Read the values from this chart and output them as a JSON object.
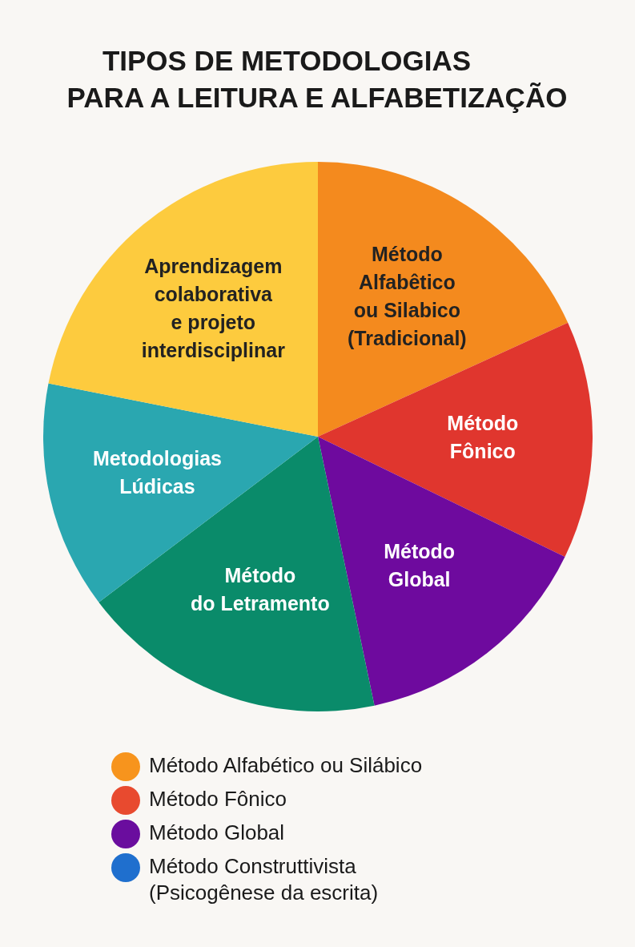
{
  "chart_data": {
    "type": "pie",
    "title": "TIPOS DE METODOLOGIAS\nPARA A LEITURA E ALFABETIZAÇÃO",
    "categories": [
      "Método\nAlfabêtico\nou Silabico\n(Tradicional)",
      "Método\nFônico",
      "Método\nGlobal",
      "Método\ndo Letramento",
      "Metodologias\nLúdicas",
      "Aprendizagem\ncolaborativa\ne projeto\ninterdisciplinar"
    ],
    "values": [
      18.2,
      14.0,
      14.5,
      18.0,
      13.4,
      21.9
    ],
    "colors": [
      "#f48a1e",
      "#e0362e",
      "#6e0a9e",
      "#0a8b6a",
      "#2aa7b0",
      "#fdcb3e"
    ],
    "annotations": [
      "Método Alfabético ou Silábico",
      "Método Fônico",
      "Método Global",
      "Método Construttivista\n(Psicogênese da escrita)"
    ]
  }
}
